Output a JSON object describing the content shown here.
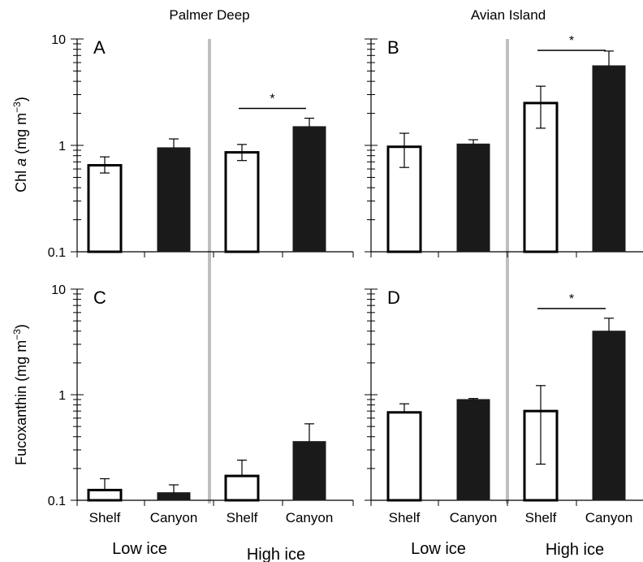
{
  "column_titles": [
    "Palmer Deep",
    "Avian Island"
  ],
  "y_labels": {
    "top": {
      "pre": "Chl ",
      "italic": "a",
      "unit": " (mg m",
      "exp": "−3",
      "close": ")"
    },
    "bottom": {
      "pre": "Fucoxanthin",
      "unit": " (mg m",
      "exp": "−3",
      "close": ")"
    }
  },
  "y_ticks": [
    "10",
    "1",
    "0.1"
  ],
  "categories": [
    "Shelf",
    "Canyon",
    "Shelf",
    "Canyon"
  ],
  "groups": [
    "Low ice",
    "High ice"
  ],
  "sig_marker": "*",
  "colors": {
    "shelf_fill": "#ffffff",
    "canyon_fill": "#1a1a1a",
    "divider": "#bfbfbf"
  },
  "chart_data": [
    {
      "id": "A",
      "type": "bar",
      "scale": "log",
      "ylim": [
        0.1,
        10
      ],
      "values": [
        0.65,
        0.95,
        0.86,
        1.5
      ],
      "err_low": [
        0.55,
        0.95,
        0.72,
        1.5
      ],
      "err_high": [
        0.78,
        1.15,
        1.02,
        1.8
      ],
      "sig": [
        2,
        3
      ]
    },
    {
      "id": "B",
      "type": "bar",
      "scale": "log",
      "ylim": [
        0.1,
        10
      ],
      "values": [
        0.97,
        1.03,
        2.5,
        5.6
      ],
      "err_low": [
        0.62,
        1.03,
        1.45,
        5.6
      ],
      "err_high": [
        1.3,
        1.13,
        3.6,
        7.7
      ],
      "sig": [
        2,
        3
      ]
    },
    {
      "id": "C",
      "type": "bar",
      "scale": "log",
      "ylim": [
        0.1,
        10
      ],
      "values": [
        0.125,
        0.118,
        0.17,
        0.36
      ],
      "err_low": [
        0.125,
        0.118,
        0.17,
        0.36
      ],
      "err_high": [
        0.16,
        0.14,
        0.24,
        0.53
      ],
      "sig": []
    },
    {
      "id": "D",
      "type": "bar",
      "scale": "log",
      "ylim": [
        0.1,
        10
      ],
      "values": [
        0.68,
        0.9,
        0.7,
        4.0
      ],
      "err_low": [
        0.68,
        0.9,
        0.22,
        4.0
      ],
      "err_high": [
        0.82,
        0.92,
        1.22,
        5.3
      ],
      "sig": [
        2,
        3
      ]
    }
  ]
}
